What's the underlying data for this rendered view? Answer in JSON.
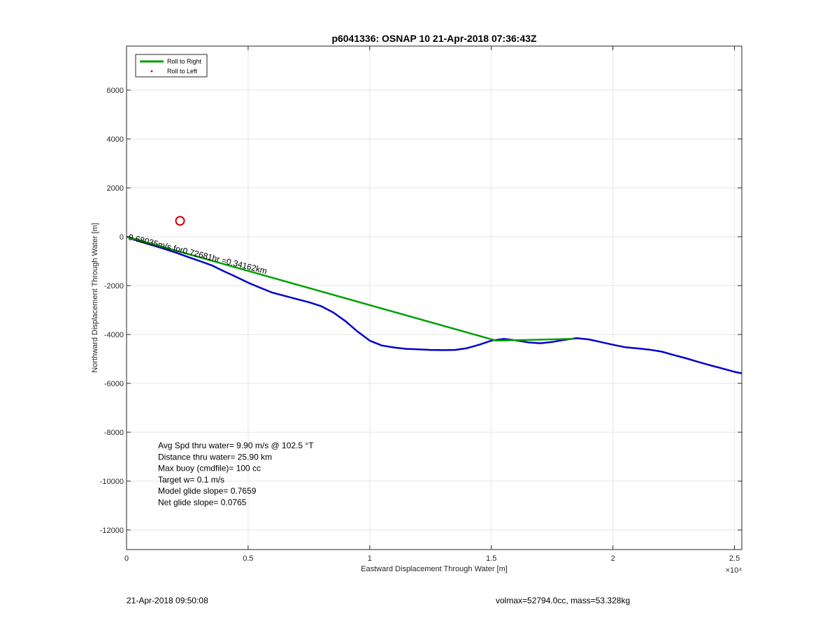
{
  "chart_data": {
    "type": "line",
    "title": "p6041336: OSNAP 10 21-Apr-2018 07:36:43Z",
    "xlabel": "Eastward Displacement Through Water [m]",
    "ylabel": "Northward Displacement Through Water [m]",
    "x_multiplier_label": "×10⁴",
    "xlim": [
      0,
      25300
    ],
    "ylim": [
      -12800,
      7800
    ],
    "x_ticks": [
      0,
      5000,
      10000,
      15000,
      20000,
      25000
    ],
    "x_tick_labels": [
      "0",
      "0.5",
      "1",
      "1.5",
      "2",
      "2.5"
    ],
    "y_ticks": [
      -12000,
      -10000,
      -8000,
      -6000,
      -4000,
      -2000,
      0,
      2000,
      4000,
      6000
    ],
    "y_tick_labels": [
      "-12000",
      "-10000",
      "-8000",
      "-6000",
      "-4000",
      "-2000",
      "0",
      "2000",
      "4000",
      "6000"
    ],
    "grid": true,
    "legend_position": "top-left",
    "legend": [
      {
        "label": "Roll to Right",
        "color": "#00a000",
        "style": "line"
      },
      {
        "label": "Roll to Left",
        "color": "#ff0000",
        "style": "dot"
      }
    ],
    "series": [
      {
        "color": "#0000cc",
        "x": [
          0,
          500,
          1000,
          1500,
          2000,
          2500,
          3000,
          3500,
          4000,
          4500,
          5000,
          5500,
          6000,
          6500,
          7000,
          7500,
          8000,
          8500,
          9000,
          9500,
          10000,
          10500,
          11000,
          11500,
          12000,
          12500,
          13000,
          13500,
          14000,
          14500,
          15000,
          15500,
          16000,
          16500,
          17000,
          17500,
          18000,
          18500,
          19000,
          19500,
          20000,
          20500,
          21000,
          21500,
          22000,
          22500,
          23000,
          23500,
          24000,
          24500,
          25000,
          25300
        ],
        "y": [
          0,
          -180,
          -330,
          -480,
          -640,
          -820,
          -990,
          -1170,
          -1410,
          -1640,
          -1880,
          -2090,
          -2290,
          -2420,
          -2550,
          -2680,
          -2840,
          -3100,
          -3450,
          -3880,
          -4250,
          -4450,
          -4530,
          -4590,
          -4610,
          -4630,
          -4640,
          -4630,
          -4560,
          -4420,
          -4250,
          -4180,
          -4240,
          -4320,
          -4360,
          -4310,
          -4220,
          -4150,
          -4200,
          -4310,
          -4420,
          -4520,
          -4570,
          -4620,
          -4700,
          -4840,
          -4970,
          -5120,
          -5260,
          -5390,
          -5530,
          -5590
        ]
      },
      {
        "color": "#00a000",
        "x": [
          0,
          15200,
          16200,
          18400
        ],
        "y": [
          0,
          -4250,
          -4230,
          -4180
        ]
      }
    ],
    "markers": [
      {
        "kind": "circle",
        "color": "#cc0000",
        "x": 2200,
        "y": 650
      }
    ],
    "annotations": [
      {
        "text": "9.68035m/s for0.72681hr =0.34162km",
        "x": 0,
        "y": 0
      }
    ],
    "stats_box": [
      "Avg Spd thru water=  9.90 m/s @ 102.5 °T",
      "Distance thru water= 25.90 km",
      "Max buoy (cmdfile)= 100 cc",
      "Target w= 0.1 m/s",
      "Model glide slope= 0.7659",
      "Net glide slope= 0.0765"
    ]
  },
  "footer": {
    "timestamp": "21-Apr-2018 09:50:08",
    "info": "volmax=52794.0cc, mass=53.328kg"
  }
}
